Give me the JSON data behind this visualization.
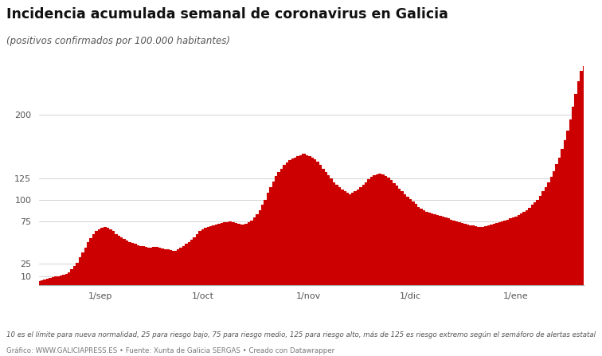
{
  "title": "Incidencia acumulada semanal de coronavirus en Galicia",
  "subtitle": "(positivos confirmados por 100.000 habitantes)",
  "fill_color": "#CC0000",
  "background_color": "#ffffff",
  "yticks": [
    10,
    25,
    75,
    100,
    125,
    200
  ],
  "footnote1": "10 es el límite para nueva normalidad, 25 para riesgo bajo, 75 para riesgo medio, 125 para riesgo alto, más de 125 es riesgo extremo según el semáforo de alertas estatal",
  "footnote2": "Gráfico: WWW.GALICIAPRESS.ES • Fuente: Xunta de Galicia SERGAS • Creado con Datawrapper",
  "xtick_labels": [
    "1/sep",
    "1/oct",
    "1/nov",
    "1/dic",
    "1/ene"
  ],
  "ylim": [
    0,
    260
  ],
  "values": [
    4,
    5,
    6,
    7,
    8,
    9,
    10,
    10,
    11,
    12,
    13,
    15,
    18,
    22,
    26,
    32,
    38,
    44,
    50,
    55,
    60,
    63,
    65,
    67,
    68,
    67,
    65,
    63,
    60,
    58,
    56,
    54,
    52,
    50,
    49,
    48,
    47,
    46,
    46,
    45,
    44,
    44,
    45,
    45,
    44,
    43,
    42,
    42,
    41,
    40,
    40,
    42,
    44,
    46,
    48,
    50,
    53,
    56,
    60,
    63,
    65,
    67,
    68,
    69,
    70,
    71,
    72,
    73,
    74,
    74,
    75,
    74,
    73,
    72,
    71,
    71,
    72,
    74,
    76,
    79,
    83,
    88,
    94,
    100,
    108,
    115,
    122,
    128,
    133,
    137,
    141,
    144,
    147,
    149,
    150,
    152,
    153,
    154,
    153,
    152,
    150,
    148,
    145,
    141,
    137,
    133,
    129,
    125,
    121,
    118,
    115,
    112,
    110,
    108,
    107,
    108,
    110,
    112,
    115,
    118,
    121,
    124,
    127,
    129,
    130,
    131,
    130,
    128,
    126,
    123,
    120,
    117,
    113,
    110,
    107,
    104,
    101,
    98,
    95,
    92,
    90,
    88,
    86,
    85,
    84,
    83,
    82,
    81,
    80,
    79,
    78,
    77,
    76,
    75,
    74,
    73,
    72,
    71,
    70,
    70,
    69,
    68,
    68,
    68,
    69,
    70,
    71,
    72,
    73,
    74,
    75,
    76,
    77,
    78,
    79,
    80,
    82,
    84,
    86,
    88,
    91,
    94,
    97,
    100,
    105,
    110,
    115,
    121,
    127,
    134,
    142,
    150,
    160,
    170,
    182,
    195,
    210,
    225,
    240,
    252,
    258
  ]
}
